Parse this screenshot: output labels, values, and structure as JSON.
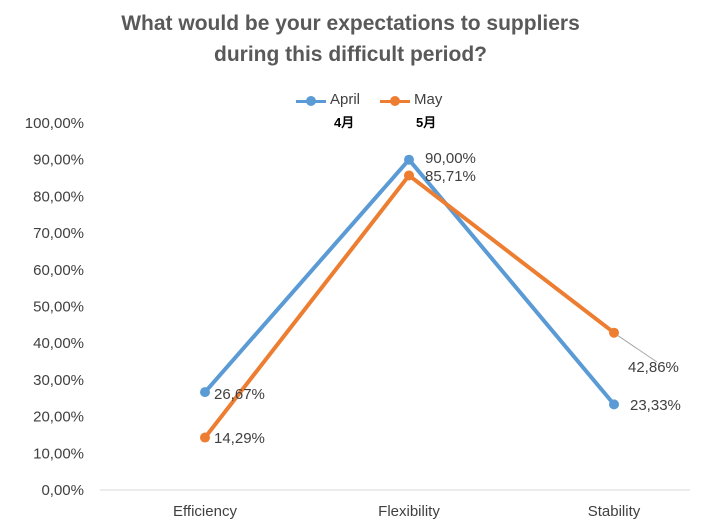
{
  "chart_data": {
    "type": "line",
    "title_lines": [
      "What would be your expectations to suppliers",
      "during this difficult period?"
    ],
    "categories": [
      "Efficiency",
      "Flexibility",
      "Stability"
    ],
    "series": [
      {
        "name": "April",
        "sublabel": "4月",
        "color": "#5B9BD5",
        "values": [
          26.67,
          90.0,
          23.33
        ],
        "labels": [
          "26,67%",
          "90,00%",
          "23,33%"
        ]
      },
      {
        "name": "May",
        "sublabel": "5月",
        "color": "#ED7D31",
        "values": [
          14.29,
          85.71,
          42.86
        ],
        "labels": [
          "14,29%",
          "85,71%",
          "42,86%"
        ]
      }
    ],
    "y_ticks": [
      "0,00%",
      "10,00%",
      "20,00%",
      "30,00%",
      "40,00%",
      "50,00%",
      "60,00%",
      "70,00%",
      "80,00%",
      "90,00%",
      "100,00%"
    ],
    "ylim": [
      0,
      100
    ],
    "grid": false,
    "legend_position": "top"
  }
}
